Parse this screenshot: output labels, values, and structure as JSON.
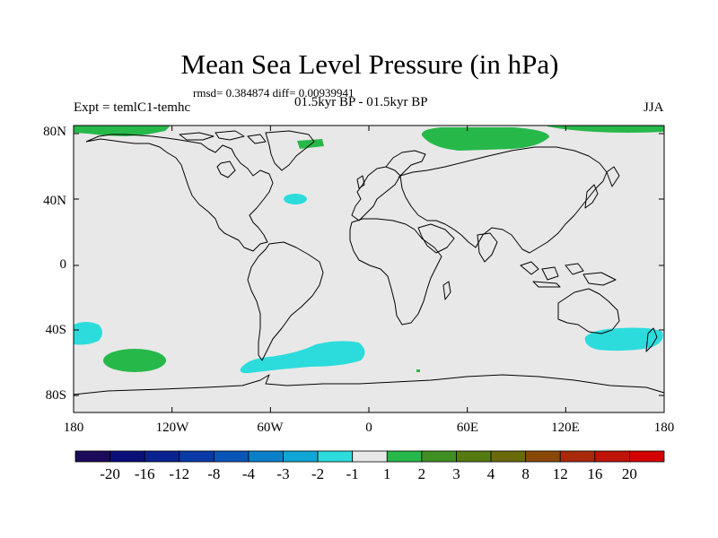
{
  "title": "Mean Sea Level Pressure (in hPa)",
  "stats": "rmsd= 0.384874 diff= 0.00939941",
  "period": "01.5kyr BP - 01.5kyr BP",
  "experiment": "Expt = temlC1-temhc",
  "season": "JJA",
  "lat_ticks": [
    "80N",
    "40N",
    "0",
    "40S",
    "80S"
  ],
  "lon_ticks": [
    "180",
    "120W",
    "60W",
    "0",
    "60E",
    "120E",
    "180"
  ],
  "colorbar": {
    "labels": [
      "-20",
      "-16",
      "-12",
      "-8",
      "-4",
      "-3",
      "-2",
      "-1",
      "1",
      "2",
      "3",
      "4",
      "8",
      "12",
      "16",
      "20"
    ],
    "colors": [
      "#1c0a5a",
      "#0a0f7a",
      "#0a2290",
      "#0a3aa8",
      "#0a55b8",
      "#0a80c8",
      "#10a6d6",
      "#2cdcdc",
      "#e8e8e8",
      "#27b84a",
      "#3f8f22",
      "#557a10",
      "#6b6a08",
      "#8a4808",
      "#a82a08",
      "#bf1308",
      "#d40000"
    ]
  },
  "map": {
    "background": "#e8e8e8",
    "lat_range": [
      -90,
      90
    ],
    "lon_range": [
      -180,
      180
    ]
  }
}
